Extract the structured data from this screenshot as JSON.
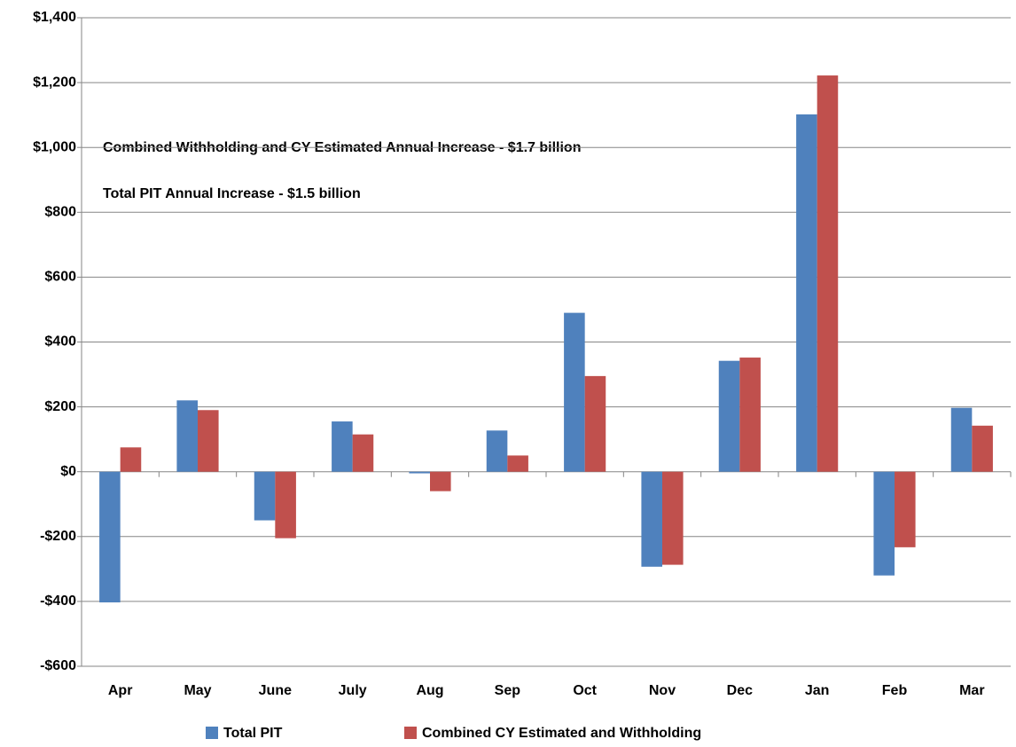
{
  "chart_data": {
    "type": "bar",
    "annotations": [
      "Combined Withholding and CY Estimated Annual Increase - $1.7 billion",
      "Total PIT Annual Increase - $1.5 billion"
    ],
    "categories": [
      "Apr",
      "May",
      "June",
      "July",
      "Aug",
      "Sep",
      "Oct",
      "Nov",
      "Dec",
      "Jan",
      "Feb",
      "Mar"
    ],
    "series": [
      {
        "name": "Total PIT",
        "color": "#4f81bd",
        "values": [
          -403,
          220,
          -150,
          155,
          -5,
          127,
          490,
          -293,
          342,
          1102,
          -320,
          197
        ]
      },
      {
        "name": "Combined CY Estimated and Withholding",
        "color": "#c0504d",
        "values": [
          75,
          190,
          -205,
          115,
          -60,
          50,
          295,
          -287,
          352,
          1222,
          -233,
          142
        ]
      }
    ],
    "ylim": [
      -600,
      1400
    ],
    "yticks": [
      {
        "value": -600,
        "label": "-$600"
      },
      {
        "value": -400,
        "label": "-$400"
      },
      {
        "value": -200,
        "label": "-$200"
      },
      {
        "value": 0,
        "label": "$0"
      },
      {
        "value": 200,
        "label": "$200"
      },
      {
        "value": 400,
        "label": "$400"
      },
      {
        "value": 600,
        "label": "$600"
      },
      {
        "value": 800,
        "label": "$800"
      },
      {
        "value": 1000,
        "label": "$1,000"
      },
      {
        "value": 1200,
        "label": "$1,200"
      },
      {
        "value": 1400,
        "label": "$1,400"
      }
    ],
    "grid": true,
    "legend": "bottom"
  }
}
